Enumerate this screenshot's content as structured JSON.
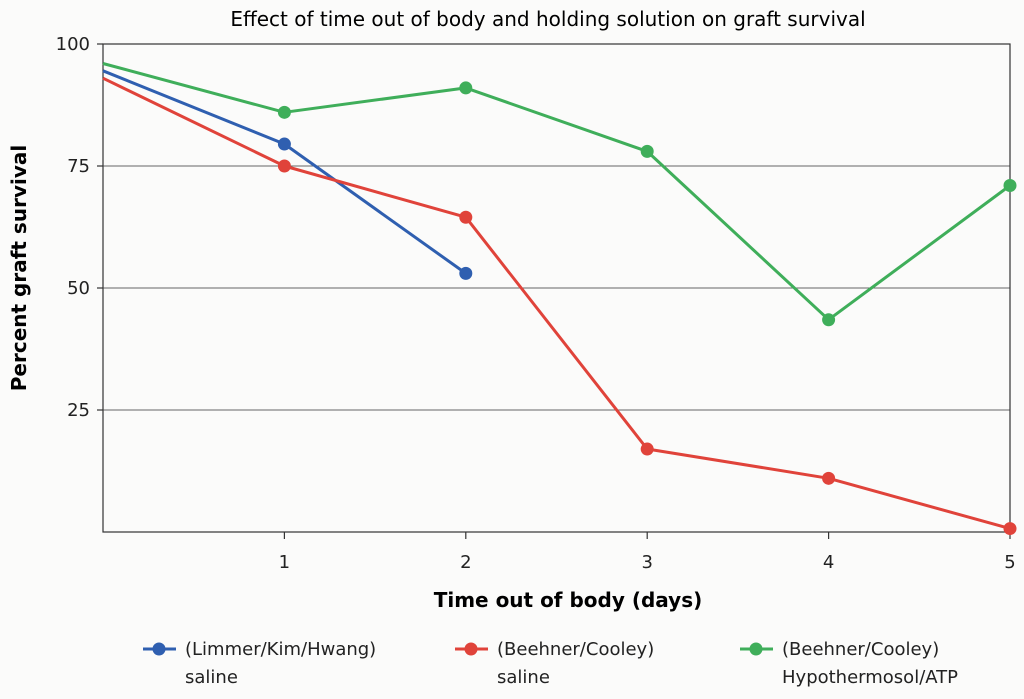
{
  "chart_data": {
    "type": "line",
    "title": "Effect of time out of body and holding solution on graft survival",
    "xlabel": "Time out of body (days)",
    "ylabel": "Percent graft survival",
    "xlim": [
      0,
      5
    ],
    "ylim": [
      0,
      100
    ],
    "xticks": [
      1,
      2,
      3,
      4,
      5
    ],
    "yticks": [
      25,
      50,
      75,
      100
    ],
    "grid": "horizontal",
    "legend_position": "bottom",
    "series": [
      {
        "name_line1": "(Limmer/Kim/Hwang)",
        "name_line2": "saline",
        "color": "#2f5fb0",
        "points": [
          [
            0,
            94.5
          ],
          [
            1,
            79.5
          ],
          [
            2,
            53
          ]
        ]
      },
      {
        "name_line1": "(Beehner/Cooley)",
        "name_line2": "saline",
        "color": "#e0433a",
        "points": [
          [
            0,
            93
          ],
          [
            1,
            75
          ],
          [
            2,
            64.5
          ],
          [
            3,
            17
          ],
          [
            4,
            11
          ],
          [
            5,
            0.7
          ]
        ]
      },
      {
        "name_line1": "(Beehner/Cooley)",
        "name_line2": "Hypothermosol/ATP",
        "color": "#3fae5a",
        "points": [
          [
            0,
            96
          ],
          [
            1,
            86
          ],
          [
            2,
            91
          ],
          [
            3,
            78
          ],
          [
            4,
            43.5
          ],
          [
            5,
            71
          ]
        ]
      }
    ]
  }
}
